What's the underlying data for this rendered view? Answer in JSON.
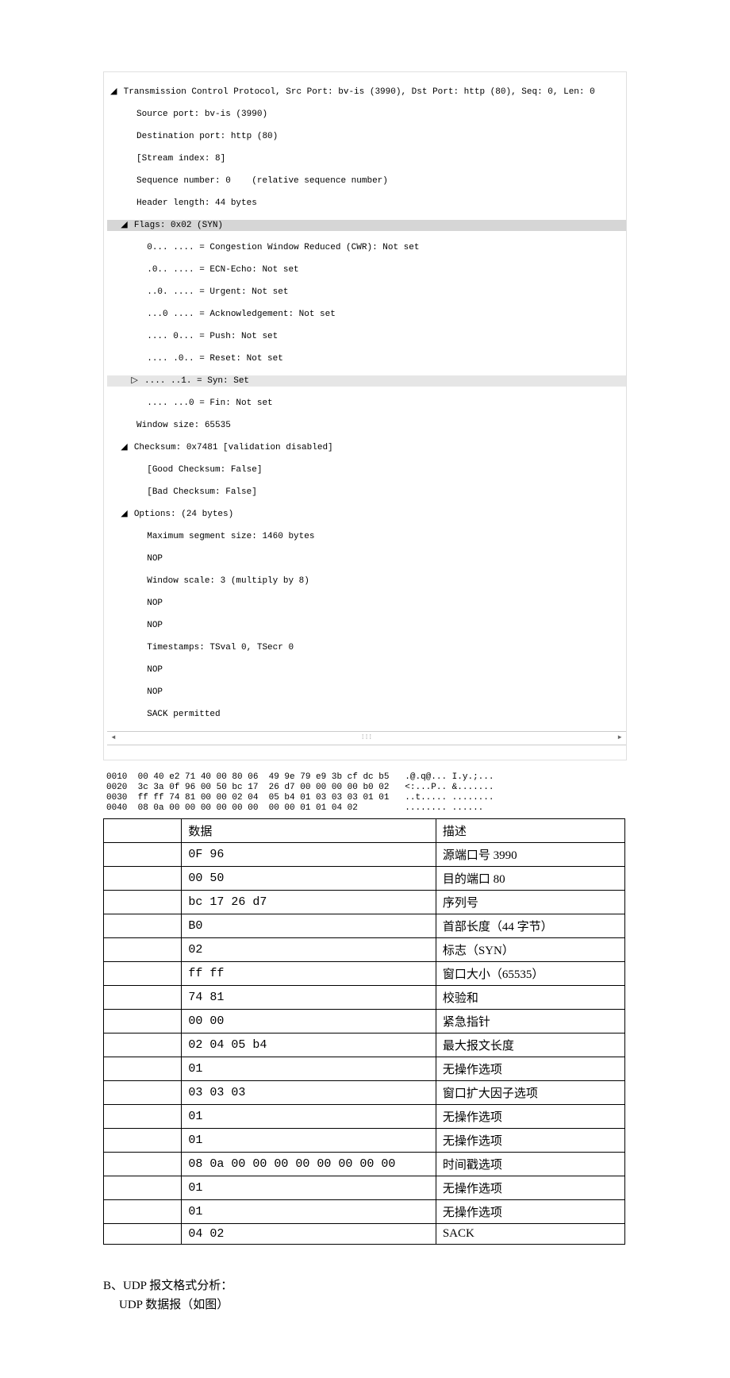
{
  "tree": {
    "header": "Transmission Control Protocol, Src Port: bv-is (3990), Dst Port: http (80), Seq: 0, Len: 0",
    "src_port": "Source port: bv-is (3990)",
    "dst_port": "Destination port: http (80)",
    "stream_index": "[Stream index: 8]",
    "seq_num": "Sequence number: 0    (relative sequence number)",
    "header_len": "Header length: 44 bytes",
    "flags_header": "Flags: 0x02 (SYN)",
    "flag_cwr": "0... .... = Congestion Window Reduced (CWR): Not set",
    "flag_ecn": ".0.. .... = ECN-Echo: Not set",
    "flag_urg": "..0. .... = Urgent: Not set",
    "flag_ack": "...0 .... = Acknowledgement: Not set",
    "flag_psh": ".... 0... = Push: Not set",
    "flag_rst": ".... .0.. = Reset: Not set",
    "flag_syn": ".... ..1. = Syn: Set",
    "flag_fin": ".... ...0 = Fin: Not set",
    "window_size": "Window size: 65535",
    "checksum_header": "Checksum: 0x7481 [validation disabled]",
    "good_checksum": "[Good Checksum: False]",
    "bad_checksum": "[Bad Checksum: False]",
    "options_header": "Options: (24 bytes)",
    "opt_mss": "Maximum segment size: 1460 bytes",
    "opt_nop1": "NOP",
    "opt_wscale": "Window scale: 3 (multiply by 8)",
    "opt_nop2": "NOP",
    "opt_nop3": "NOP",
    "opt_ts": "Timestamps: TSval 0, TSecr 0",
    "opt_nop4": "NOP",
    "opt_nop5": "NOP",
    "opt_sack": "SACK permitted"
  },
  "hex": {
    "line1": "0010  00 40 e2 71 40 00 80 06  49 9e 79 e9 3b cf dc b5   .@.q@... I.y.;...",
    "line2": "0020  3c 3a 0f 96 00 50 bc 17  26 d7 00 00 00 00 b0 02   <:...P.. &.......",
    "line3": "0030  ff ff 74 81 00 00 02 04  05 b4 01 03 03 03 01 01   ..t..... ........",
    "line4": "0040  08 0a 00 00 00 00 00 00  00 00 01 01 04 02         ........ ......"
  },
  "table": {
    "header_data": "数据",
    "header_desc": "描述",
    "rows": [
      {
        "d": "0F 96",
        "desc": "源端口号 3990"
      },
      {
        "d": "00 50",
        "desc": "目的端口 80"
      },
      {
        "d": "bc 17 26 d7",
        "desc": "序列号"
      },
      {
        "d": "B0",
        "desc": "首部长度（44 字节）"
      },
      {
        "d": "02",
        "desc": "标志（SYN）"
      },
      {
        "d": "ff ff",
        "desc": "窗口大小（65535）"
      },
      {
        "d": "74 81",
        "desc": "校验和"
      },
      {
        "d": "00 00",
        "desc": "紧急指针"
      },
      {
        "d": "02 04 05 b4",
        "desc": "最大报文长度"
      },
      {
        "d": "01",
        "desc": "无操作选项"
      },
      {
        "d": "03 03 03",
        "desc": "窗口扩大因子选项"
      },
      {
        "d": "01",
        "desc": "无操作选项"
      },
      {
        "d": "01",
        "desc": "无操作选项"
      },
      {
        "d": "08 0a 00 00 00 00 00 00 00 00",
        "desc": "时间戳选项"
      },
      {
        "d": "01",
        "desc": "无操作选项"
      },
      {
        "d": "01",
        "desc": "无操作选项"
      },
      {
        "d": "04 02",
        "desc": "SACK"
      }
    ]
  },
  "bottom": {
    "line1": "B、UDP 报文格式分析：",
    "line2": "UDP 数据报（如图）"
  },
  "scrollbar": {
    "left": "◄",
    "right": "►",
    "mid": "⁞⁞⁞"
  }
}
